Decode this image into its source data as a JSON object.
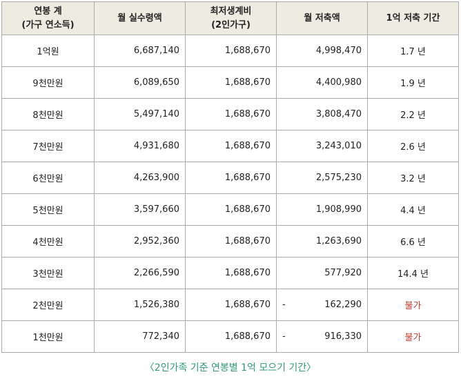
{
  "table": {
    "headers": {
      "income": {
        "line1": "연봉 계",
        "line2": "(가구 연소득)"
      },
      "net": {
        "line1": "월 실수령액",
        "line2": ""
      },
      "min": {
        "line1": "최저생계비",
        "line2": "(2인가구)"
      },
      "save": {
        "line1": "월 저축액",
        "line2": ""
      },
      "period": {
        "line1": "1억 저축 기간",
        "line2": ""
      }
    },
    "rows": [
      {
        "income": "1억원",
        "net": "6,687,140",
        "min": "1,688,670",
        "neg": "",
        "save": "4,998,470",
        "period": "1.7 년",
        "impossible": false
      },
      {
        "income": "9천만원",
        "net": "6,089,650",
        "min": "1,688,670",
        "neg": "",
        "save": "4,400,980",
        "period": "1.9 년",
        "impossible": false
      },
      {
        "income": "8천만원",
        "net": "5,497,140",
        "min": "1,688,670",
        "neg": "",
        "save": "3,808,470",
        "period": "2.2 년",
        "impossible": false
      },
      {
        "income": "7천만원",
        "net": "4,931,680",
        "min": "1,688,670",
        "neg": "",
        "save": "3,243,010",
        "period": "2.6 년",
        "impossible": false
      },
      {
        "income": "6천만원",
        "net": "4,263,900",
        "min": "1,688,670",
        "neg": "",
        "save": "2,575,230",
        "period": "3.2 년",
        "impossible": false
      },
      {
        "income": "5천만원",
        "net": "3,597,660",
        "min": "1,688,670",
        "neg": "",
        "save": "1,908,990",
        "period": "4.4 년",
        "impossible": false
      },
      {
        "income": "4천만원",
        "net": "2,952,360",
        "min": "1,688,670",
        "neg": "",
        "save": "1,263,690",
        "period": "6.6 년",
        "impossible": false
      },
      {
        "income": "3천만원",
        "net": "2,266,590",
        "min": "1,688,670",
        "neg": "",
        "save": "577,920",
        "period": "14.4 년",
        "impossible": false
      },
      {
        "income": "2천만원",
        "net": "1,526,380",
        "min": "1,688,670",
        "neg": "-",
        "save": "162,290",
        "period": "불가",
        "impossible": true
      },
      {
        "income": "1천만원",
        "net": "772,340",
        "min": "1,688,670",
        "neg": "-",
        "save": "916,330",
        "period": "불가",
        "impossible": true
      }
    ]
  },
  "caption": "〈2인가족 기준 연봉별 1억 모으기 기간〉",
  "colors": {
    "header_bg": "#eeece1",
    "border": "#a9a9a9",
    "impossible": "#c0392b",
    "caption": "#2e9c74"
  }
}
